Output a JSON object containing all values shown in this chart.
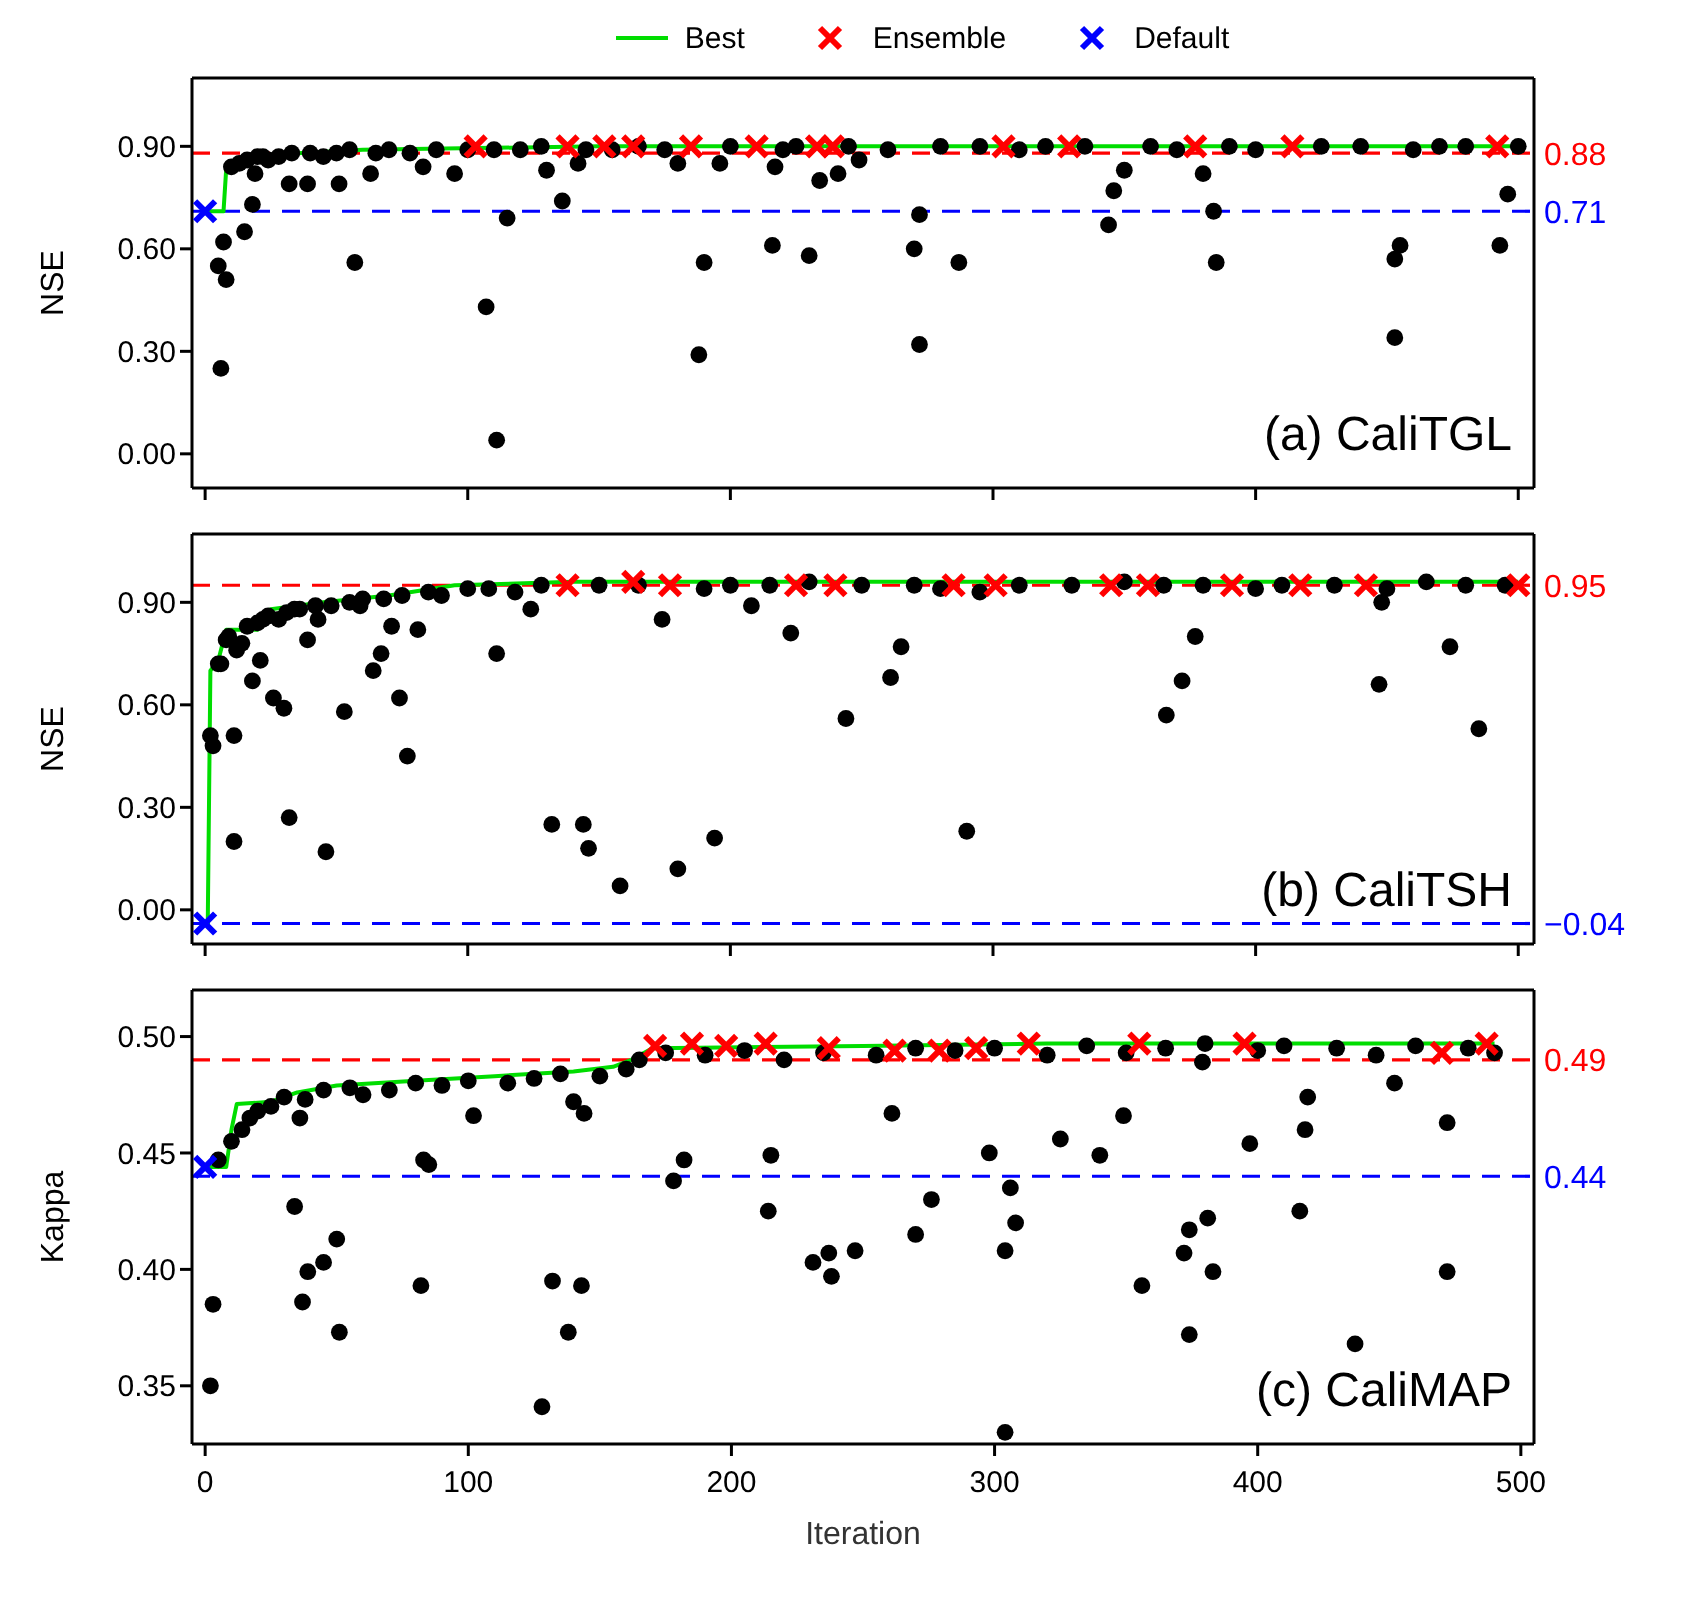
{
  "chart_data": [
    {
      "type": "scatter",
      "ylabel": "NSE",
      "legend": "top",
      "tick_labels": "y",
      "xlim": [
        -5,
        506
      ],
      "ylim": [
        -0.1,
        1.1
      ],
      "xticks": [
        0,
        100,
        200,
        300,
        400,
        500
      ],
      "yticks": [
        {
          "value": 0,
          "label": "0.00"
        },
        {
          "value": 0.3,
          "label": "0.30"
        },
        {
          "value": 0.6,
          "label": "0.60"
        },
        {
          "value": 0.9,
          "label": "0.90"
        }
      ],
      "annotations": [
        "(a) CaliTGL"
      ],
      "ref_lines": [
        {
          "axis": "y",
          "value": 0.88,
          "label": "0.88",
          "color": "#ff0000",
          "line_style": "dashed"
        },
        {
          "axis": "y",
          "value": 0.71,
          "label": "0.71",
          "color": "#0000ff",
          "line_style": "dashed"
        }
      ],
      "series": [
        {
          "color": "#000000",
          "marker": "circle",
          "x": [
            6,
            5,
            8,
            7,
            18,
            15,
            32,
            39,
            51,
            57,
            107,
            111,
            115,
            136,
            130,
            188,
            190,
            216,
            217,
            230,
            234,
            241,
            249,
            270,
            272,
            272,
            287,
            344,
            346,
            350,
            380,
            384,
            385,
            453,
            453,
            455,
            493,
            496,
            19,
            22,
            63,
            83,
            95,
            142,
            180,
            196,
            10,
            13,
            16,
            20,
            24,
            28,
            33,
            40,
            45,
            50,
            55,
            65,
            70,
            78,
            88,
            100,
            110,
            120,
            128,
            145,
            155,
            165,
            175,
            200,
            220,
            225,
            245,
            260,
            280,
            295,
            310,
            320,
            335,
            360,
            370,
            390,
            400,
            425,
            440,
            460,
            470,
            480,
            500
          ],
          "values": [
            0.25,
            0.55,
            0.51,
            0.62,
            0.73,
            0.65,
            0.79,
            0.79,
            0.79,
            0.56,
            0.43,
            0.04,
            0.69,
            0.74,
            0.83,
            0.29,
            0.56,
            0.61,
            0.84,
            0.58,
            0.8,
            0.82,
            0.86,
            0.6,
            0.32,
            0.7,
            0.56,
            0.67,
            0.77,
            0.83,
            0.82,
            0.71,
            0.56,
            0.34,
            0.57,
            0.61,
            0.61,
            0.76,
            0.82,
            0.87,
            0.82,
            0.84,
            0.82,
            0.85,
            0.85,
            0.85,
            0.84,
            0.85,
            0.86,
            0.87,
            0.86,
            0.87,
            0.88,
            0.88,
            0.87,
            0.88,
            0.89,
            0.88,
            0.89,
            0.88,
            0.89,
            0.89,
            0.89,
            0.89,
            0.9,
            0.89,
            0.89,
            0.9,
            0.89,
            0.9,
            0.89,
            0.9,
            0.9,
            0.89,
            0.9,
            0.9,
            0.89,
            0.9,
            0.9,
            0.9,
            0.89,
            0.9,
            0.89,
            0.9,
            0.9,
            0.89,
            0.9,
            0.9,
            0.9
          ]
        },
        {
          "name": "Best",
          "type": "line",
          "color": "#00dd00",
          "x": [
            0,
            7,
            8,
            12,
            20,
            35,
            60,
            150,
            500
          ],
          "values": [
            0.71,
            0.71,
            0.83,
            0.85,
            0.87,
            0.88,
            0.89,
            0.9,
            0.9
          ]
        },
        {
          "name": "Ensemble",
          "color": "#ff0000",
          "marker": "cross",
          "x": [
            103,
            138,
            152,
            163,
            185,
            210,
            233,
            239,
            304,
            329,
            377,
            414,
            492
          ],
          "values": [
            0.9,
            0.9,
            0.9,
            0.9,
            0.9,
            0.9,
            0.9,
            0.9,
            0.9,
            0.9,
            0.9,
            0.9,
            0.9
          ]
        },
        {
          "name": "Default",
          "color": "#0000ff",
          "marker": "cross",
          "x": [
            0
          ],
          "values": [
            0.71
          ]
        }
      ]
    },
    {
      "type": "scatter",
      "ylabel": "NSE",
      "tick_labels": "y",
      "xlim": [
        -5,
        506
      ],
      "ylim": [
        -0.1,
        1.1
      ],
      "xticks": [
        0,
        100,
        200,
        300,
        400,
        500
      ],
      "yticks": [
        {
          "value": 0,
          "label": "0.00"
        },
        {
          "value": 0.3,
          "label": "0.30"
        },
        {
          "value": 0.6,
          "label": "0.60"
        },
        {
          "value": 0.9,
          "label": "0.90"
        }
      ],
      "annotations": [
        "(b) CaliTSH"
      ],
      "ref_lines": [
        {
          "axis": "y",
          "value": 0.95,
          "label": "0.95",
          "color": "#ff0000",
          "line_style": "dashed"
        },
        {
          "axis": "y",
          "value": -0.04,
          "label": "−0.04",
          "color": "#0000ff",
          "line_style": "dashed"
        }
      ],
      "series": [
        {
          "color": "#000000",
          "marker": "circle",
          "x": [
            2,
            3,
            6,
            8,
            11,
            11,
            14,
            18,
            21,
            26,
            30,
            32,
            39,
            46,
            53,
            64,
            74,
            77,
            81,
            71,
            111,
            132,
            144,
            146,
            158,
            180,
            174,
            194,
            208,
            223,
            244,
            261,
            265,
            290,
            366,
            372,
            377,
            448,
            447,
            474,
            485,
            124,
            67,
            22,
            34,
            43,
            59,
            5,
            9,
            12,
            16,
            20,
            24,
            28,
            31,
            36,
            42,
            48,
            55,
            60,
            68,
            75,
            85,
            90,
            100,
            108,
            118,
            128,
            150,
            165,
            190,
            200,
            215,
            230,
            250,
            270,
            280,
            295,
            310,
            330,
            350,
            365,
            380,
            400,
            410,
            430,
            450,
            465,
            480,
            495
          ],
          "values": [
            0.51,
            0.48,
            0.72,
            0.79,
            0.2,
            0.51,
            0.78,
            0.67,
            0.73,
            0.62,
            0.59,
            0.27,
            0.79,
            0.17,
            0.58,
            0.7,
            0.62,
            0.45,
            0.82,
            0.83,
            0.75,
            0.25,
            0.25,
            0.18,
            0.07,
            0.12,
            0.85,
            0.21,
            0.89,
            0.81,
            0.56,
            0.68,
            0.77,
            0.23,
            0.57,
            0.67,
            0.8,
            0.9,
            0.66,
            0.77,
            0.53,
            0.88,
            0.75,
            0.85,
            0.88,
            0.85,
            0.89,
            0.72,
            0.8,
            0.76,
            0.83,
            0.84,
            0.86,
            0.85,
            0.87,
            0.88,
            0.89,
            0.89,
            0.9,
            0.91,
            0.91,
            0.92,
            0.93,
            0.92,
            0.94,
            0.94,
            0.93,
            0.95,
            0.95,
            0.95,
            0.94,
            0.95,
            0.95,
            0.96,
            0.95,
            0.95,
            0.94,
            0.93,
            0.95,
            0.95,
            0.96,
            0.95,
            0.95,
            0.94,
            0.95,
            0.95,
            0.94,
            0.96,
            0.95,
            0.95
          ]
        },
        {
          "type": "line",
          "color": "#00dd00",
          "x": [
            0,
            1,
            2,
            5,
            8,
            20,
            25,
            45,
            70,
            95,
            140,
            500
          ],
          "values": [
            -0.04,
            -0.04,
            0.7,
            0.73,
            0.82,
            0.82,
            0.88,
            0.9,
            0.92,
            0.95,
            0.96,
            0.96
          ]
        },
        {
          "color": "#ff0000",
          "marker": "cross",
          "x": [
            138,
            163,
            177,
            225,
            240,
            285,
            301,
            345,
            359,
            391,
            417,
            442,
            500
          ],
          "values": [
            0.95,
            0.96,
            0.95,
            0.95,
            0.95,
            0.95,
            0.95,
            0.95,
            0.95,
            0.95,
            0.95,
            0.95,
            0.95
          ]
        },
        {
          "color": "#0000ff",
          "marker": "cross",
          "x": [
            0
          ],
          "values": [
            -0.04
          ]
        }
      ]
    },
    {
      "type": "scatter",
      "ylabel": "Kappa",
      "xlabel": "Iteration",
      "xlim": [
        -5,
        505
      ],
      "ylim": [
        0.325,
        0.52
      ],
      "xticks": [
        0,
        100,
        200,
        300,
        400,
        500
      ],
      "yticks": [
        {
          "value": 0.35,
          "label": "0.35"
        },
        {
          "value": 0.4,
          "label": "0.40"
        },
        {
          "value": 0.45,
          "label": "0.45"
        },
        {
          "value": 0.5,
          "label": "0.50"
        }
      ],
      "annotations": [
        "(c) CaliMAP"
      ],
      "ref_lines": [
        {
          "axis": "y",
          "value": 0.49,
          "label": "0.49",
          "color": "#ff0000",
          "line_style": "dashed"
        },
        {
          "axis": "y",
          "value": 0.44,
          "label": "0.44",
          "color": "#0000ff",
          "line_style": "dashed"
        }
      ],
      "series": [
        {
          "color": "#000000",
          "marker": "circle",
          "x": [
            2,
            3,
            34,
            37,
            39,
            45,
            50,
            51,
            36,
            82,
            83,
            85,
            102,
            128,
            132,
            138,
            143,
            140,
            144,
            178,
            182,
            214,
            215,
            231,
            237,
            238,
            247,
            261,
            270,
            276,
            298,
            304,
            304,
            306,
            308,
            325,
            340,
            349,
            356,
            372,
            374,
            374,
            381,
            383,
            397,
            416,
            418,
            419,
            452,
            472,
            472,
            437,
            379,
            5,
            10,
            14,
            17,
            20,
            25,
            30,
            38,
            45,
            55,
            60,
            70,
            80,
            90,
            100,
            115,
            125,
            135,
            150,
            160,
            165,
            175,
            190,
            205,
            220,
            235,
            255,
            270,
            285,
            300,
            320,
            335,
            350,
            365,
            380,
            400,
            410,
            430,
            445,
            460,
            480,
            490
          ],
          "values": [
            0.35,
            0.385,
            0.427,
            0.386,
            0.399,
            0.403,
            0.413,
            0.373,
            0.465,
            0.393,
            0.447,
            0.445,
            0.466,
            0.341,
            0.395,
            0.373,
            0.393,
            0.472,
            0.467,
            0.438,
            0.447,
            0.425,
            0.449,
            0.403,
            0.407,
            0.397,
            0.408,
            0.467,
            0.415,
            0.43,
            0.45,
            0.408,
            0.33,
            0.435,
            0.42,
            0.456,
            0.449,
            0.466,
            0.393,
            0.407,
            0.417,
            0.372,
            0.422,
            0.399,
            0.454,
            0.425,
            0.46,
            0.474,
            0.48,
            0.463,
            0.399,
            0.368,
            0.489,
            0.447,
            0.455,
            0.46,
            0.465,
            0.468,
            0.47,
            0.474,
            0.473,
            0.477,
            0.478,
            0.475,
            0.477,
            0.48,
            0.479,
            0.481,
            0.48,
            0.482,
            0.484,
            0.483,
            0.486,
            0.49,
            0.493,
            0.492,
            0.494,
            0.49,
            0.493,
            0.492,
            0.495,
            0.494,
            0.495,
            0.492,
            0.496,
            0.493,
            0.495,
            0.497,
            0.494,
            0.496,
            0.495,
            0.492,
            0.496,
            0.495,
            0.493
          ]
        },
        {
          "type": "line",
          "color": "#00dd00",
          "x": [
            0,
            8,
            10,
            12,
            25,
            35,
            50,
            80,
            110,
            140,
            155,
            162,
            170,
            250,
            320,
            490
          ],
          "values": [
            0.444,
            0.444,
            0.46,
            0.471,
            0.472,
            0.476,
            0.479,
            0.481,
            0.483,
            0.485,
            0.487,
            0.49,
            0.495,
            0.496,
            0.497,
            0.497
          ]
        },
        {
          "color": "#ff0000",
          "marker": "cross",
          "x": [
            171,
            185,
            198,
            213,
            237,
            262,
            279,
            293,
            313,
            355,
            395,
            470,
            487
          ],
          "values": [
            0.496,
            0.497,
            0.496,
            0.497,
            0.495,
            0.494,
            0.494,
            0.495,
            0.497,
            0.497,
            0.497,
            0.493,
            0.497
          ]
        },
        {
          "color": "#0000ff",
          "marker": "cross",
          "x": [
            0
          ],
          "values": [
            0.444
          ]
        }
      ]
    }
  ]
}
